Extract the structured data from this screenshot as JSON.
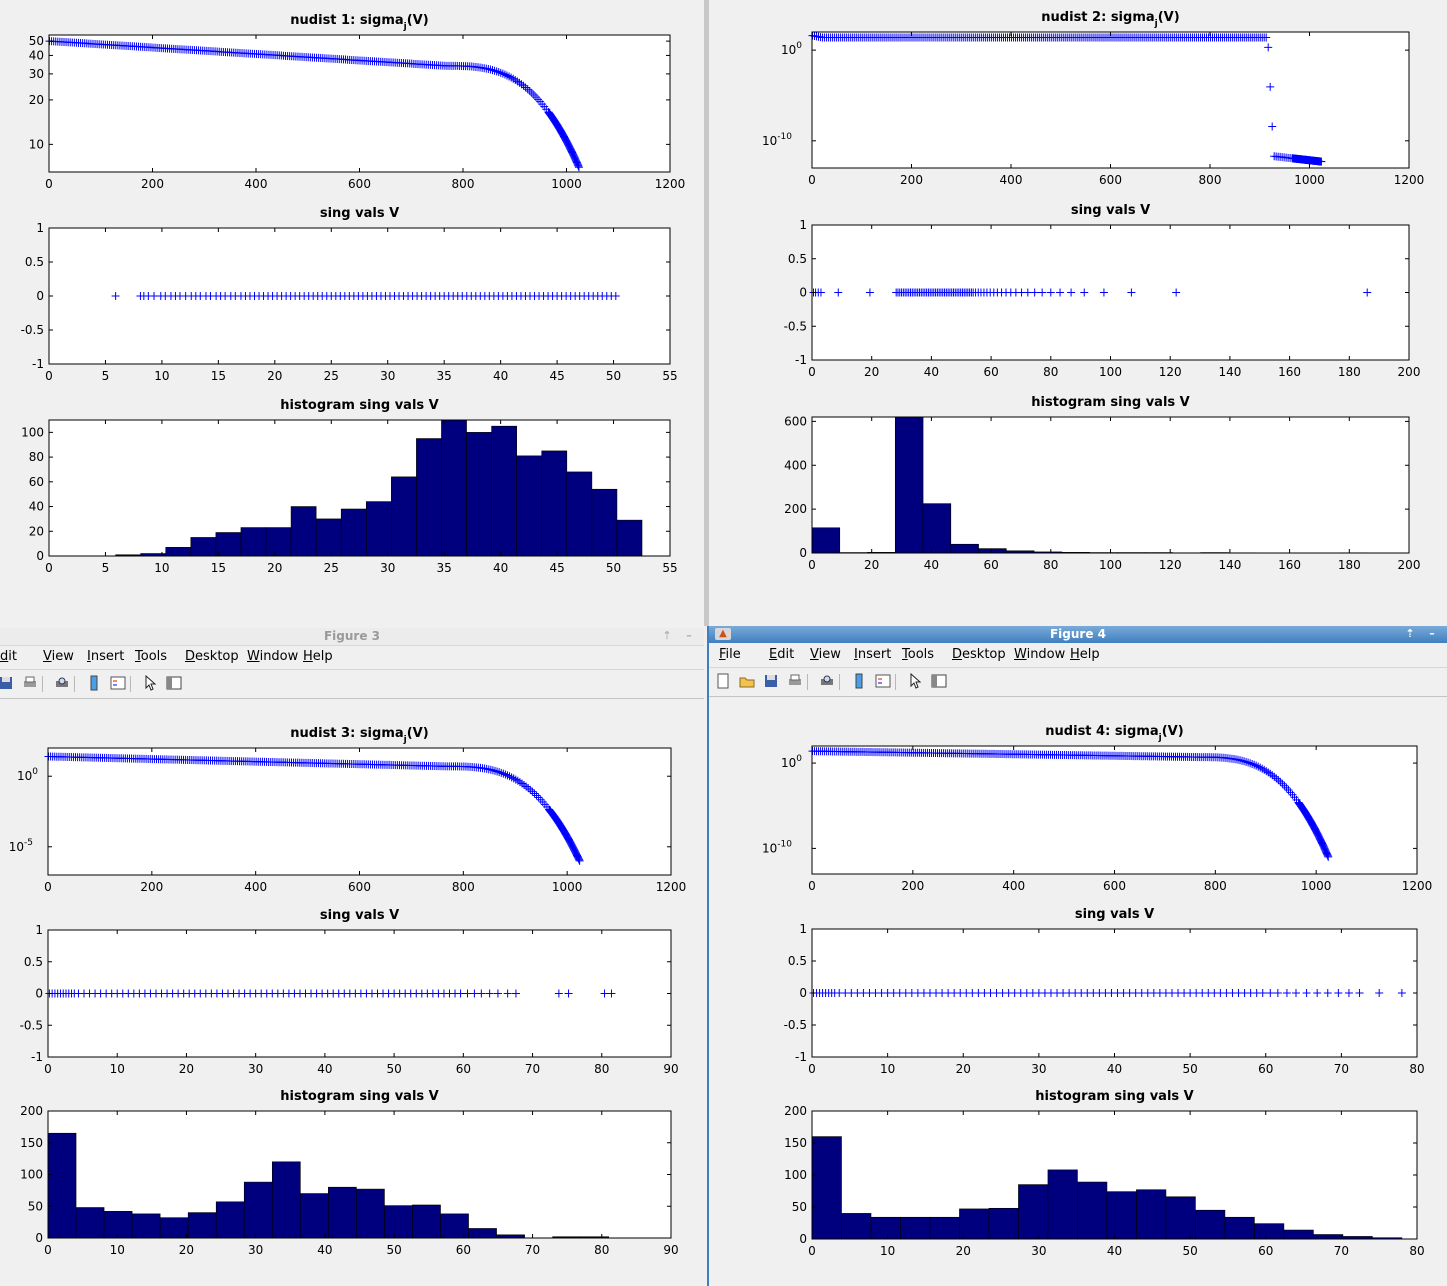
{
  "colors": {
    "marker": "#0000ff",
    "bar_fill": "#00007f",
    "axes_bg": "#ffffff"
  },
  "windows": {
    "fig3": {
      "title": "Figure 3",
      "menu": [
        "dit",
        "View",
        "Insert",
        "Tools",
        "Desktop",
        "Window",
        "Help"
      ],
      "icons": [
        "save-icon",
        "print-icon",
        "print-preview-icon",
        "colorbar-icon",
        "legend-icon",
        "pointer-icon",
        "property-editor-icon"
      ]
    },
    "fig4": {
      "title": "Figure 4",
      "menu": [
        "File",
        "Edit",
        "View",
        "Insert",
        "Tools",
        "Desktop",
        "Window",
        "Help"
      ],
      "icons": [
        "new-figure-icon",
        "open-icon",
        "save-icon",
        "print-icon",
        "print-preview-icon",
        "colorbar-icon",
        "legend-icon",
        "pointer-icon",
        "property-editor-icon"
      ]
    }
  },
  "chart_data": [
    {
      "id": "f1a",
      "type": "scatter",
      "title": "nudist 1: sigma",
      "title_sub": "j",
      "title_tail": "(V)",
      "yscale": "log",
      "xlim": [
        0,
        1200
      ],
      "ylim": [
        6.5,
        55
      ],
      "xticks": [
        0,
        200,
        400,
        600,
        800,
        1000,
        1200
      ],
      "yticks": [
        {
          "v": 10,
          "l": "10"
        },
        {
          "v": 20,
          "l": "20"
        },
        {
          "v": 30,
          "l": "30"
        },
        {
          "v": 40,
          "l": "40"
        },
        {
          "v": 50,
          "l": "50"
        }
      ],
      "curve": {
        "kind": "decay",
        "n": 1024,
        "start": 50,
        "mid": 34,
        "end": 7,
        "min": 5.8
      }
    },
    {
      "id": "f1b",
      "type": "scatter",
      "title": "sing vals V",
      "xlim": [
        0,
        55
      ],
      "ylim": [
        -1,
        1
      ],
      "xticks": [
        0,
        5,
        10,
        15,
        20,
        25,
        30,
        35,
        40,
        45,
        50,
        55
      ],
      "yticks": [
        {
          "v": -1,
          "l": "-1"
        },
        {
          "v": -0.5,
          "l": "-0.5"
        },
        {
          "v": 0,
          "l": "0"
        },
        {
          "v": 0.5,
          "l": "0.5"
        },
        {
          "v": 1,
          "l": "1"
        }
      ],
      "points": [
        5.9,
        8.1,
        8.4,
        8.8,
        9.3,
        9.9,
        10.3,
        10.8,
        11.2,
        11.6,
        12.1,
        12.6,
        13.0,
        13.4,
        13.9,
        14.3,
        14.8,
        15.2,
        15.6,
        16.1,
        16.5,
        17.0,
        17.4,
        17.8,
        18.2,
        18.6,
        19.0,
        19.4,
        19.8,
        20.2,
        20.6,
        21.0,
        21.4,
        21.8,
        22.2,
        22.6,
        23.0,
        23.4,
        23.8,
        24.2,
        24.6,
        25.0,
        25.4,
        25.8,
        26.2,
        26.6,
        27.0,
        27.4,
        27.8,
        28.2,
        28.6,
        29.0,
        29.4,
        29.8,
        30.2,
        30.6,
        31,
        31.4,
        31.8,
        32.2,
        32.6,
        33,
        33.4,
        33.8,
        34.2,
        34.6,
        35,
        35.4,
        35.8,
        36.2,
        36.6,
        37,
        37.4,
        37.8,
        38.2,
        38.6,
        39,
        39.4,
        39.8,
        40.2,
        40.6,
        41,
        41.4,
        41.8,
        42.2,
        42.6,
        43,
        43.4,
        43.8,
        44.2,
        44.6,
        45,
        45.4,
        45.8,
        46.2,
        46.6,
        47,
        47.4,
        47.8,
        48.2,
        48.6,
        49,
        49.4,
        49.8,
        50.2
      ]
    },
    {
      "id": "f1c",
      "type": "bar",
      "title": "histogram sing vals V",
      "xlim": [
        0,
        55
      ],
      "ylim": [
        0,
        110
      ],
      "xticks": [
        0,
        5,
        10,
        15,
        20,
        25,
        30,
        35,
        40,
        45,
        50,
        55
      ],
      "yticks": [
        {
          "v": 0,
          "l": "0"
        },
        {
          "v": 20,
          "l": "20"
        },
        {
          "v": 40,
          "l": "40"
        },
        {
          "v": 60,
          "l": "60"
        },
        {
          "v": 80,
          "l": "80"
        },
        {
          "v": 100,
          "l": "100"
        }
      ],
      "edges_start": 5.9,
      "bin_width": 2.22,
      "values": [
        1,
        2,
        7,
        15,
        19,
        23,
        23,
        40,
        30,
        38,
        44,
        64,
        95,
        110,
        100,
        105,
        81,
        85,
        68,
        54,
        29
      ]
    },
    {
      "id": "f2a",
      "type": "scatter",
      "title": "nudist 2: sigma",
      "title_sub": "j",
      "title_tail": "(V)",
      "yscale": "log",
      "xlim": [
        0,
        1200
      ],
      "ylim": [
        1e-13,
        100
      ],
      "xticks": [
        0,
        200,
        400,
        600,
        800,
        1000,
        1200
      ],
      "yticks": [
        {
          "v": 1,
          "l": "10",
          "e": "0"
        },
        {
          "v": 1e-10,
          "l": "10",
          "e": "-10"
        }
      ],
      "curve": {
        "kind": "step",
        "n": 1024,
        "start": 40,
        "plateau": 25,
        "drop_at": 915,
        "low_start": 2e-12,
        "low_end": 5e-13
      }
    },
    {
      "id": "f2b",
      "type": "scatter",
      "title": "sing vals V",
      "xlim": [
        0,
        200
      ],
      "ylim": [
        -1,
        1
      ],
      "xticks": [
        0,
        20,
        40,
        60,
        80,
        100,
        120,
        140,
        160,
        180,
        200
      ],
      "yticks": [
        {
          "v": -1,
          "l": "-1"
        },
        {
          "v": -0.5,
          "l": "-0.5"
        },
        {
          "v": 0,
          "l": "0"
        },
        {
          "v": 0.5,
          "l": "0.5"
        },
        {
          "v": 1,
          "l": "1"
        }
      ],
      "points": [
        0.5,
        1.2,
        2.1,
        3.0,
        8.8,
        19.4,
        28.2,
        28.8,
        29.4,
        30.0,
        30.6,
        31.2,
        31.8,
        32.4,
        33.0,
        33.6,
        34.2,
        34.8,
        35.4,
        36.0,
        36.6,
        37.2,
        37.8,
        38.4,
        39.0,
        39.6,
        40.2,
        40.8,
        41.4,
        42.0,
        42.6,
        43.2,
        43.8,
        44.4,
        45.0,
        45.6,
        46.2,
        46.8,
        47.4,
        48.0,
        48.6,
        49.2,
        49.8,
        50.4,
        51.0,
        51.6,
        52.2,
        52.8,
        53.4,
        54.0,
        54.8,
        55.7,
        56.6,
        57.6,
        58.6,
        59.7,
        60.9,
        62.1,
        63.5,
        65.0,
        66.6,
        68.3,
        70.2,
        72.3,
        74.6,
        77.1,
        80.0,
        83.1,
        86.8,
        91.2,
        97.8,
        107.0,
        122.0,
        186.0
      ]
    },
    {
      "id": "f2c",
      "type": "bar",
      "title": "histogram sing vals V",
      "xlim": [
        0,
        200
      ],
      "ylim": [
        0,
        620
      ],
      "xticks": [
        0,
        20,
        40,
        60,
        80,
        100,
        120,
        140,
        160,
        180,
        200
      ],
      "yticks": [
        {
          "v": 0,
          "l": "0"
        },
        {
          "v": 200,
          "l": "200"
        },
        {
          "v": 400,
          "l": "400"
        },
        {
          "v": 600,
          "l": "600"
        }
      ],
      "edges_start": 0,
      "bin_width": 9.3,
      "values": [
        115,
        2,
        3,
        620,
        225,
        40,
        20,
        10,
        5,
        3,
        2,
        2,
        2,
        1,
        2,
        1,
        0,
        0,
        0,
        1
      ]
    },
    {
      "id": "f3a",
      "type": "scatter",
      "title": "nudist 3: sigma",
      "title_sub": "j",
      "title_tail": "(V)",
      "yscale": "log",
      "xlim": [
        0,
        1200
      ],
      "ylim": [
        1e-07,
        100
      ],
      "xticks": [
        0,
        200,
        400,
        600,
        800,
        1000,
        1200
      ],
      "yticks": [
        {
          "v": 1,
          "l": "10",
          "e": "0"
        },
        {
          "v": 1e-05,
          "l": "10",
          "e": "-5"
        }
      ],
      "curve": {
        "kind": "decay",
        "n": 1024,
        "start": 25,
        "mid": 5,
        "end": 1e-06,
        "min": 3e-07
      }
    },
    {
      "id": "f3b",
      "type": "scatter",
      "title": "sing vals V",
      "xlim": [
        0,
        90
      ],
      "ylim": [
        -1,
        1
      ],
      "xticks": [
        0,
        10,
        20,
        30,
        40,
        50,
        60,
        70,
        80,
        90
      ],
      "yticks": [
        {
          "v": -1,
          "l": "-1"
        },
        {
          "v": -0.5,
          "l": "-0.5"
        },
        {
          "v": 0,
          "l": "0"
        },
        {
          "v": 0.5,
          "l": "0.5"
        },
        {
          "v": 1,
          "l": "1"
        }
      ],
      "points": [
        0.2,
        0.6,
        1.0,
        1.4,
        1.8,
        2.2,
        2.6,
        3.0,
        3.4,
        3.8,
        4.4,
        5.2,
        6.0,
        6.8,
        7.6,
        8.4,
        9.2,
        10.0,
        10.8,
        11.6,
        12.4,
        13.2,
        14.0,
        14.8,
        15.6,
        16.4,
        17.2,
        18.0,
        18.8,
        19.6,
        20.4,
        21.2,
        22.0,
        22.8,
        23.6,
        24.4,
        25.2,
        26.0,
        26.8,
        27.6,
        28.4,
        29.2,
        30.0,
        30.8,
        31.6,
        32.4,
        33.2,
        34.0,
        34.8,
        35.6,
        36.4,
        37.2,
        38.0,
        38.8,
        39.6,
        40.4,
        41.2,
        42.0,
        42.8,
        43.6,
        44.4,
        45.2,
        46.0,
        46.8,
        47.6,
        48.4,
        49.2,
        50.0,
        50.8,
        51.6,
        52.4,
        53.2,
        54.0,
        54.8,
        55.6,
        56.4,
        57.2,
        58.0,
        58.8,
        59.6,
        60.6,
        61.6,
        62.6,
        63.8,
        65.0,
        66.4,
        67.6,
        73.8,
        75.2,
        80.4,
        81.4
      ]
    },
    {
      "id": "f3c",
      "type": "bar",
      "title": "histogram sing vals V",
      "xlim": [
        0,
        90
      ],
      "ylim": [
        0,
        200
      ],
      "xticks": [
        0,
        10,
        20,
        30,
        40,
        50,
        60,
        70,
        80,
        90
      ],
      "yticks": [
        {
          "v": 0,
          "l": "0"
        },
        {
          "v": 50,
          "l": "50"
        },
        {
          "v": 100,
          "l": "100"
        },
        {
          "v": 150,
          "l": "150"
        },
        {
          "v": 200,
          "l": "200"
        }
      ],
      "edges_start": 0,
      "bin_width": 4.05,
      "values": [
        165,
        48,
        42,
        38,
        32,
        40,
        57,
        88,
        120,
        70,
        80,
        77,
        51,
        52,
        38,
        15,
        5,
        0,
        2,
        2
      ]
    },
    {
      "id": "f4a",
      "type": "scatter",
      "title": "nudist 4: sigma",
      "title_sub": "j",
      "title_tail": "(V)",
      "yscale": "log",
      "xlim": [
        0,
        1200
      ],
      "ylim": [
        1e-13,
        100
      ],
      "xticks": [
        0,
        200,
        400,
        600,
        800,
        1000,
        1200
      ],
      "yticks": [
        {
          "v": 1,
          "l": "10",
          "e": "0"
        },
        {
          "v": 1e-10,
          "l": "10",
          "e": "-10"
        }
      ],
      "curve": {
        "kind": "decay",
        "n": 1024,
        "start": 25,
        "mid": 5,
        "end": 1e-11,
        "min": 1e-13
      }
    },
    {
      "id": "f4b",
      "type": "scatter",
      "title": "sing vals V",
      "xlim": [
        0,
        80
      ],
      "ylim": [
        -1,
        1
      ],
      "xticks": [
        0,
        10,
        20,
        30,
        40,
        50,
        60,
        70,
        80
      ],
      "yticks": [
        {
          "v": -1,
          "l": "-1"
        },
        {
          "v": -0.5,
          "l": "-0.5"
        },
        {
          "v": 0,
          "l": "0"
        },
        {
          "v": 0.5,
          "l": "0.5"
        },
        {
          "v": 1,
          "l": "1"
        }
      ],
      "points": [
        0.2,
        0.6,
        1.0,
        1.4,
        1.8,
        2.2,
        2.6,
        3.0,
        3.6,
        4.4,
        5.2,
        6.0,
        6.8,
        7.6,
        8.4,
        9.2,
        10.0,
        10.8,
        11.6,
        12.4,
        13.2,
        14.0,
        14.8,
        15.6,
        16.4,
        17.2,
        18.0,
        18.8,
        19.6,
        20.4,
        21.2,
        22.0,
        22.8,
        23.6,
        24.4,
        25.2,
        26.0,
        26.8,
        27.6,
        28.4,
        29.2,
        30.0,
        30.8,
        31.6,
        32.4,
        33.2,
        34.0,
        34.8,
        35.6,
        36.4,
        37.2,
        38.0,
        38.8,
        39.6,
        40.4,
        41.2,
        42.0,
        42.8,
        43.6,
        44.4,
        45.2,
        46.0,
        46.8,
        47.6,
        48.4,
        49.2,
        50.0,
        50.8,
        51.6,
        52.4,
        53.2,
        54.0,
        54.8,
        55.6,
        56.4,
        57.2,
        58.0,
        58.8,
        59.6,
        60.6,
        61.6,
        62.8,
        64.0,
        65.4,
        66.8,
        68.2,
        69.6,
        71.0,
        72.4,
        75.0,
        78.0
      ]
    },
    {
      "id": "f4c",
      "type": "bar",
      "title": "histogram sing vals V",
      "xlim": [
        0,
        80
      ],
      "ylim": [
        0,
        200
      ],
      "xticks": [
        0,
        10,
        20,
        30,
        40,
        50,
        60,
        70,
        80
      ],
      "yticks": [
        {
          "v": 0,
          "l": "0"
        },
        {
          "v": 50,
          "l": "50"
        },
        {
          "v": 100,
          "l": "100"
        },
        {
          "v": 150,
          "l": "150"
        },
        {
          "v": 200,
          "l": "200"
        }
      ],
      "edges_start": 0,
      "bin_width": 3.9,
      "values": [
        160,
        40,
        34,
        34,
        34,
        47,
        48,
        85,
        108,
        89,
        74,
        77,
        66,
        45,
        34,
        24,
        14,
        7,
        4,
        2
      ]
    }
  ]
}
